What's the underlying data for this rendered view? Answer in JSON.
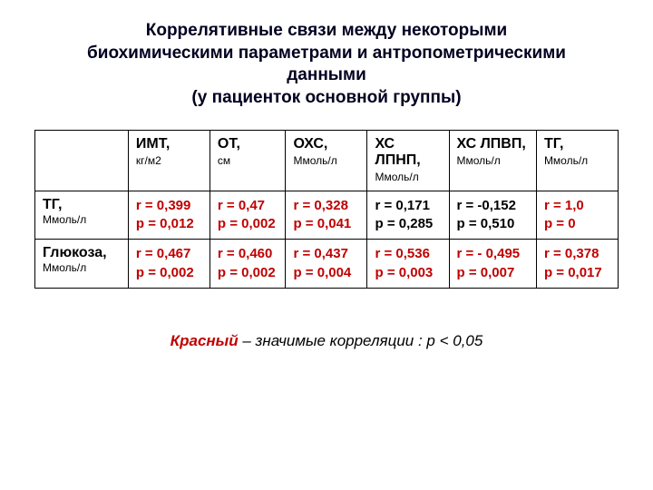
{
  "title_lines": [
    "Коррелятивные связи между некоторыми",
    "биохимическими параметрами и антропометрическими",
    "данными",
    "(у пациенток основной группы)"
  ],
  "colors": {
    "significant": "#c00000",
    "nonsignificant": "#000000",
    "title": "#000020",
    "border": "#000000",
    "background": "#ffffff"
  },
  "table": {
    "col_widths_pct": [
      16,
      14,
      13,
      14,
      14,
      15,
      14
    ],
    "columns": [
      {
        "name": "",
        "unit": ""
      },
      {
        "name": "ИМТ,",
        "unit": "кг/м2"
      },
      {
        "name": "ОТ,",
        "unit": "см"
      },
      {
        "name": "ОХС,",
        "unit": "Ммоль/л"
      },
      {
        "name": "ХС ЛПНП,",
        "unit": "Ммоль/л"
      },
      {
        "name": "ХС ЛПВП,",
        "unit": "Ммоль/л"
      },
      {
        "name": "ТГ,",
        "unit": "Ммоль/л"
      }
    ],
    "rows": [
      {
        "name": "ТГ,",
        "unit": "Ммоль/л",
        "cells": [
          {
            "r": "r = 0,399",
            "p": "p = 0,012",
            "sig": true
          },
          {
            "r": "r = 0,47",
            "p": "p = 0,002",
            "sig": true
          },
          {
            "r": "r = 0,328",
            "p": "p = 0,041",
            "sig": true
          },
          {
            "r": "r = 0,171",
            "p": "p = 0,285",
            "sig": false
          },
          {
            "r": "r = -0,152",
            "p": "p = 0,510",
            "sig": false
          },
          {
            "r": "r = 1,0",
            "p": "p = 0",
            "sig": true
          }
        ]
      },
      {
        "name": "Глюкоза,",
        "unit": "Ммоль/л",
        "cells": [
          {
            "r": "r = 0,467",
            "p": "p = 0,002",
            "sig": true
          },
          {
            "r": "r = 0,460",
            "p": "p = 0,002",
            "sig": true
          },
          {
            "r": "r = 0,437",
            "p": "p = 0,004",
            "sig": true
          },
          {
            "r": "r = 0,536",
            "p": "p = 0,003",
            "sig": true
          },
          {
            "r": "r = -  0,495",
            "p": "p =  0,007",
            "sig": true
          },
          {
            "r": "r = 0,378",
            "p": "p = 0,017",
            "sig": true
          }
        ]
      }
    ]
  },
  "legend": {
    "red_word": "Красный",
    "rest": " – значимые корреляции : p  <  0,05"
  }
}
